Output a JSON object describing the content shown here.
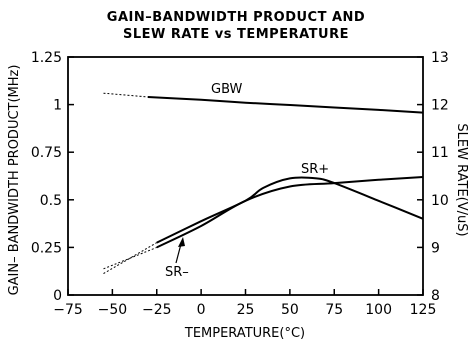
{
  "chart_data": {
    "type": "line",
    "title": "GAIN–BANDWIDTH PRODUCT AND",
    "subtitle": "SLEW RATE vs TEMPERATURE",
    "xlabel": "TEMPERATURE(°C)",
    "ylabel": "GAIN– BANDWIDTH PRODUCT(MHz)",
    "y2label": "SLEW RATE(V/uS)",
    "xlim": [
      -75,
      125
    ],
    "ylim": [
      0,
      1.25
    ],
    "y2lim": [
      8,
      13
    ],
    "x_ticks": [
      -75,
      -50,
      -25,
      0,
      25,
      50,
      75,
      100,
      125
    ],
    "x_tick_labels": [
      "−75",
      "−50",
      "−25",
      "0",
      "25",
      "50",
      "75",
      "100",
      "125"
    ],
    "y_ticks": [
      0,
      0.25,
      0.5,
      0.75,
      1,
      1.25
    ],
    "y_tick_labels": [
      "0",
      "0.25",
      "0.5",
      "0.75",
      "1",
      "1.25"
    ],
    "y2_ticks": [
      8,
      9,
      10,
      11,
      12,
      13
    ],
    "y2_tick_labels": [
      "8",
      "9",
      "10",
      "11",
      "12",
      "13"
    ],
    "grid": false,
    "legend": "none",
    "series": [
      {
        "name": "GBW",
        "axis": "left",
        "x": [
          -30,
          0,
          25,
          50,
          75,
          100,
          125
        ],
        "y": [
          1.04,
          1.025,
          1.01,
          0.998,
          0.985,
          0.972,
          0.958
        ],
        "extrapolated": {
          "x": [
            -55,
            -30
          ],
          "y": [
            1.06,
            1.04
          ]
        }
      },
      {
        "name": "SR+",
        "axis": "right",
        "x": [
          -25,
          0,
          25,
          35,
          50,
          65,
          75,
          100,
          125
        ],
        "y": [
          9.1,
          9.55,
          9.98,
          10.25,
          10.45,
          10.45,
          10.35,
          9.98,
          9.6
        ],
        "extrapolated": {
          "x": [
            -55,
            -25
          ],
          "y": [
            8.45,
            9.1
          ]
        }
      },
      {
        "name": "SR–",
        "axis": "right",
        "x": [
          -25,
          0,
          25,
          50,
          75,
          100,
          125
        ],
        "y": [
          9.0,
          9.45,
          9.98,
          10.28,
          10.35,
          10.42,
          10.48
        ],
        "extrapolated": {
          "x": [
            -55,
            -25
          ],
          "y": [
            8.55,
            9.0
          ]
        }
      }
    ],
    "labels": {
      "gbw": "GBW",
      "sr_plus": "SR+",
      "sr_minus": "SR–"
    }
  }
}
